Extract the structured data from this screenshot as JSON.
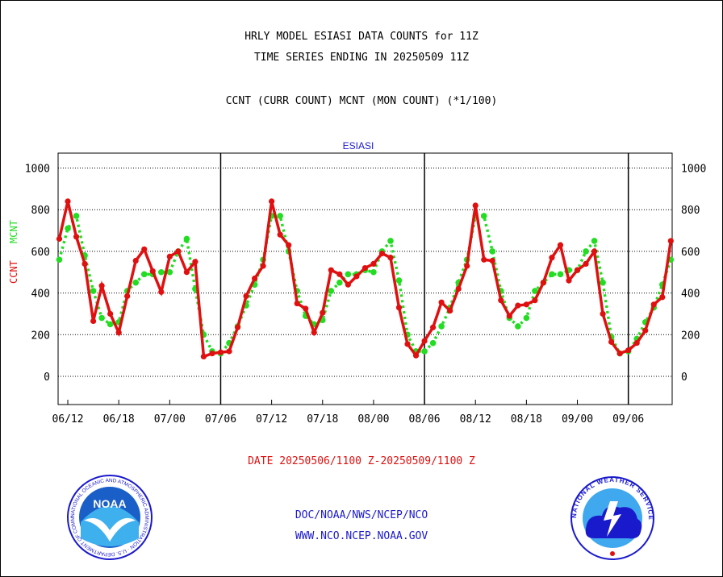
{
  "header": {
    "title1": "HRLY MODEL ESIASI DATA COUNTS for 11Z",
    "title2": "TIME SERIES ENDING IN 20250509 11Z",
    "subtitle": "CCNT (CURR COUNT) MCNT (MON COUNT) (*1/100)"
  },
  "footer": {
    "date_range": "DATE 20250506/1100 Z-20250509/1100 Z",
    "link1": "DOC/NOAA/NWS/NCEP/NCO",
    "link2": "WWW.NCO.NCEP.NOAA.GOV"
  },
  "logos": {
    "left": "NOAA",
    "left_ring": "NATIONAL OCEANIC AND ATMOSPHERIC ADMINISTRATION · U.S. DEPARTMENT OF COMMERCE",
    "right_ring": "NATIONAL WEATHER SERVICE"
  },
  "colors": {
    "ccnt": "#e01010",
    "mcnt": "#22dd22",
    "panel_label": "#1a1acd",
    "links": "#1a1acd"
  },
  "chart_data": {
    "type": "line",
    "panel_label": "ESIASI",
    "ylabel_ccnt": "CCNT",
    "ylabel_mcnt": "MCNT",
    "ylim": [
      -130,
      1070
    ],
    "yticks": [
      0,
      200,
      400,
      600,
      800,
      1000
    ],
    "xlim": [
      0,
      72
    ],
    "xtick_positions": [
      1,
      7,
      13,
      19,
      25,
      31,
      37,
      43,
      49,
      55,
      61,
      67
    ],
    "xtick_labels": [
      "06/12",
      "06/18",
      "07/00",
      "07/06",
      "07/12",
      "07/18",
      "08/00",
      "08/06",
      "08/12",
      "08/18",
      "09/00",
      "09/06"
    ],
    "major_vlines": [
      19,
      43,
      67
    ],
    "grid": true,
    "series": [
      {
        "name": "CCNT",
        "values": [
          660,
          840,
          670,
          540,
          265,
          435,
          300,
          210,
          385,
          555,
          610,
          505,
          405,
          575,
          600,
          500,
          550,
          95,
          110,
          115,
          120,
          235,
          385,
          470,
          530,
          840,
          680,
          630,
          350,
          325,
          210,
          305,
          510,
          490,
          440,
          480,
          520,
          540,
          590,
          570,
          330,
          155,
          100,
          170,
          235,
          355,
          315,
          420,
          530,
          820,
          560,
          555,
          365,
          290,
          340,
          345,
          365,
          450,
          570,
          630,
          460,
          510,
          540,
          600,
          300,
          165,
          110,
          125,
          160,
          220,
          345,
          380,
          650
        ]
      },
      {
        "name": "MCNT",
        "values": [
          560,
          710,
          770,
          580,
          410,
          280,
          250,
          260,
          410,
          450,
          490,
          490,
          500,
          500,
          600,
          660,
          420,
          200,
          120,
          110,
          160,
          240,
          340,
          440,
          560,
          770,
          770,
          600,
          410,
          290,
          250,
          270,
          410,
          450,
          490,
          490,
          510,
          500,
          600,
          650,
          460,
          200,
          120,
          120,
          160,
          240,
          330,
          450,
          560,
          770,
          770,
          600,
          410,
          280,
          240,
          280,
          410,
          450,
          490,
          490,
          510,
          510,
          600,
          650,
          450,
          190,
          110,
          120,
          180,
          260,
          330,
          440,
          560
        ]
      }
    ]
  }
}
